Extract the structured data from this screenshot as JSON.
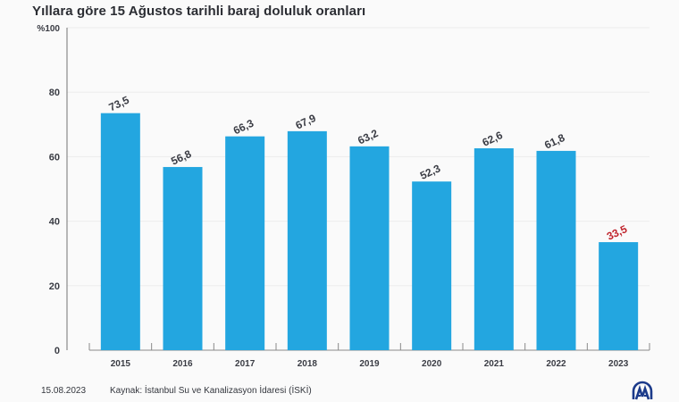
{
  "title": "Yıllara göre 15 Ağustos tarihli baraj doluluk oranları",
  "footer": {
    "date": "15.08.2023",
    "source": "Kaynak: İstanbul Su ve Kanalizasyon İdaresi (İSKİ)",
    "logo_icon": "aa-logo-icon"
  },
  "colors": {
    "bar": "#23a6e0",
    "label": "#3a3c44",
    "highlight_label": "#c0242c",
    "grid": "#ececec",
    "axis": "#8a8a8a"
  },
  "chart_data": {
    "type": "bar",
    "title": "Yıllara göre 15 Ağustos tarihli baraj doluluk oranları",
    "xlabel": "",
    "ylabel": "",
    "categories": [
      "2015",
      "2016",
      "2017",
      "2018",
      "2019",
      "2020",
      "2021",
      "2022",
      "2023"
    ],
    "values": [
      73.5,
      56.8,
      66.3,
      67.9,
      63.2,
      52.3,
      62.6,
      61.8,
      33.5
    ],
    "data_labels": [
      "73,5",
      "56,8",
      "66,3",
      "67,9",
      "63,2",
      "52,3",
      "62,6",
      "61,8",
      "33,5"
    ],
    "highlight_index": 8,
    "ylim": [
      0,
      100
    ],
    "yticks": [
      0,
      20,
      40,
      60,
      80,
      100
    ],
    "ytick_labels": [
      "0",
      "20",
      "40",
      "60",
      "80",
      "%100"
    ],
    "grid": true,
    "legend": "none"
  }
}
